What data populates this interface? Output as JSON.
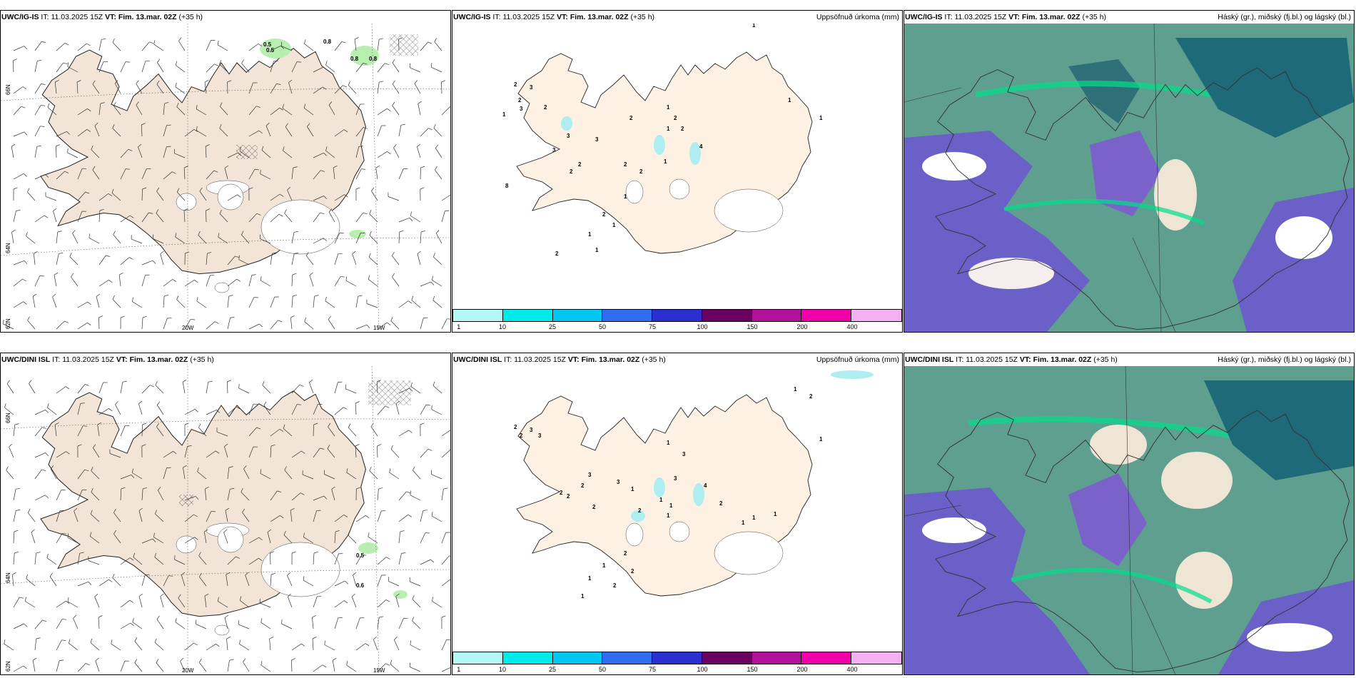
{
  "panels": [
    {
      "model": "UWC/IG-IS",
      "it_label": "IT:",
      "it": "11.03.2025 15Z",
      "vt_label": "VT:",
      "vt": "Fim. 13.mar. 02Z",
      "lead": "(+35 h)",
      "right": ""
    },
    {
      "model": "UWC/IG-IS",
      "it_label": "IT:",
      "it": "11.03.2025 15Z",
      "vt_label": "VT:",
      "vt": "Fim. 13.mar. 02Z",
      "lead": "(+35 h)",
      "right": "Uppsöfnuð úrkoma (mm)"
    },
    {
      "model": "UWC/IG-IS",
      "it_label": "IT:",
      "it": "11.03.2025 15Z",
      "vt_label": "VT:",
      "vt": "Fim. 13.mar. 02Z",
      "lead": "(+35 h)",
      "right": "Háský (gr.), miðský (fj.bl.) og lágský (bl.)"
    },
    {
      "model": "UWC/DINI ISL",
      "it_label": "IT:",
      "it": "11.03.2025 15Z",
      "vt_label": "VT:",
      "vt": "Fim. 13.mar. 02Z",
      "lead": "(+35 h)",
      "right": ""
    },
    {
      "model": "UWC/DINI ISL",
      "it_label": "IT:",
      "it": "11.03.2025 15Z",
      "vt_label": "VT:",
      "vt": "Fim. 13.mar. 02Z",
      "lead": "(+35 h)",
      "right": "Uppsöfnuð úrkoma (mm)"
    },
    {
      "model": "UWC/DINI ISL",
      "it_label": "IT:",
      "it": "11.03.2025 15Z",
      "vt_label": "VT:",
      "vt": "Fim. 13.mar. 02Z",
      "lead": "(+35 h)",
      "right": "Háský (gr.), miðský (fj.bl.) og lágský (bl.)"
    }
  ],
  "axis_labels": {
    "lon_20": "20W",
    "lon_15": "15W",
    "lat_66": "66N",
    "lat_64": "64N",
    "lat_62": "62N"
  },
  "wind_numbers_top": [
    "0.5",
    "0.5",
    "0.8",
    "0.8",
    "0.8"
  ],
  "wind_numbers_bottom": [
    "0.5",
    "0.6"
  ],
  "precip_colorbar": {
    "colors": [
      "#b3f7f7",
      "#00eaea",
      "#00c6f0",
      "#2f6ef0",
      "#2b2fcf",
      "#6a0060",
      "#b0109a",
      "#f000a8",
      "#f3b1f3"
    ],
    "ticks": [
      "1",
      "10",
      "25",
      "50",
      "75",
      "100",
      "150",
      "200",
      "400"
    ]
  },
  "colors": {
    "land_wind": "#f2e4d6",
    "land_precip": "#fdf1e3",
    "precip_light": "#aeeef0",
    "green_hatch": "#b8efb0"
  }
}
